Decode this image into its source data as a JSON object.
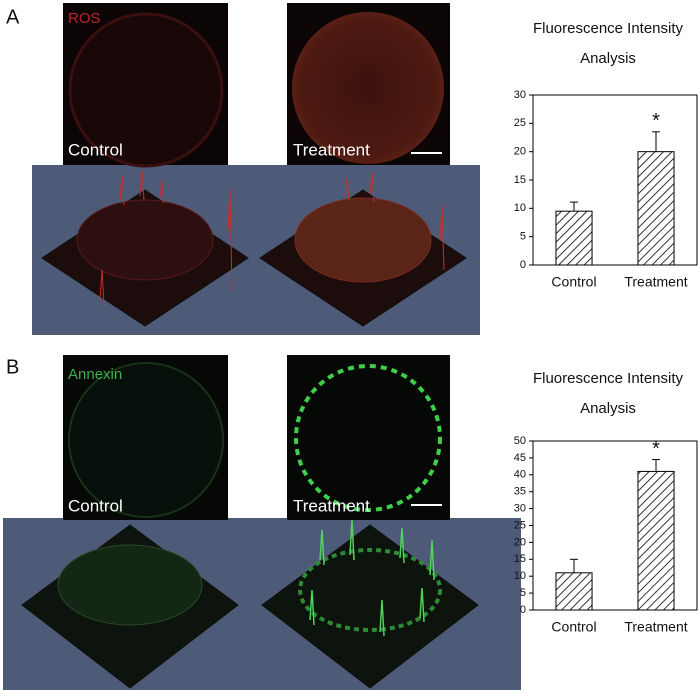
{
  "panels": [
    {
      "label": "A",
      "stain": "ROS",
      "conditions": [
        "Control",
        "Treatment"
      ]
    },
    {
      "label": "B",
      "stain": "Annexin",
      "conditions": [
        "Control",
        "Treatment"
      ]
    }
  ],
  "chart_data": [
    {
      "type": "bar",
      "title": "Fluorescence Intensity Analysis",
      "categories": [
        "Control",
        "Treatment"
      ],
      "values": [
        9.5,
        20
      ],
      "errors": [
        1.6,
        3.5
      ],
      "annotations": [
        {
          "text": "*",
          "category": "Treatment"
        }
      ],
      "color": "#000000",
      "ylim": [
        0,
        30
      ],
      "yticks": [
        0,
        5,
        10,
        15,
        20,
        25,
        30
      ]
    },
    {
      "type": "bar",
      "title": "Fluorescence Intensity Analysis",
      "categories": [
        "Control",
        "Treatment"
      ],
      "values": [
        11,
        41
      ],
      "errors": [
        4,
        3.5
      ],
      "annotations": [
        {
          "text": "*",
          "category": "Treatment"
        }
      ],
      "color": "#000000",
      "ylim": [
        0,
        50
      ],
      "yticks": [
        0,
        5,
        10,
        15,
        20,
        25,
        30,
        35,
        40,
        45,
        50
      ]
    }
  ]
}
